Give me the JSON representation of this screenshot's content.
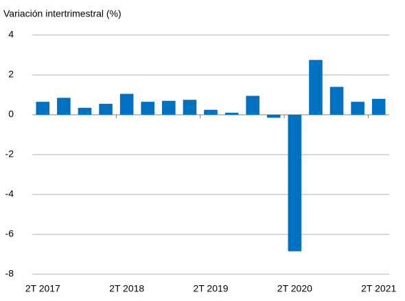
{
  "chart_data": {
    "type": "bar",
    "subtitle": "Variación intertrimestral (%)",
    "categories": [
      "2T 2017",
      null,
      null,
      null,
      "2T 2018",
      null,
      null,
      null,
      "2T 2019",
      null,
      null,
      null,
      "2T 2020",
      null,
      null,
      null,
      "2T 2021"
    ],
    "values": [
      0.65,
      0.85,
      0.35,
      0.55,
      1.05,
      0.65,
      0.7,
      0.75,
      0.25,
      0.1,
      0.95,
      -0.15,
      -6.85,
      2.75,
      1.4,
      0.65,
      0.8
    ],
    "color": "#0070c0",
    "ylim": [
      -8,
      4
    ],
    "yticks": [
      -8,
      -6,
      -4,
      -2,
      0,
      2,
      4
    ],
    "grid": true
  }
}
